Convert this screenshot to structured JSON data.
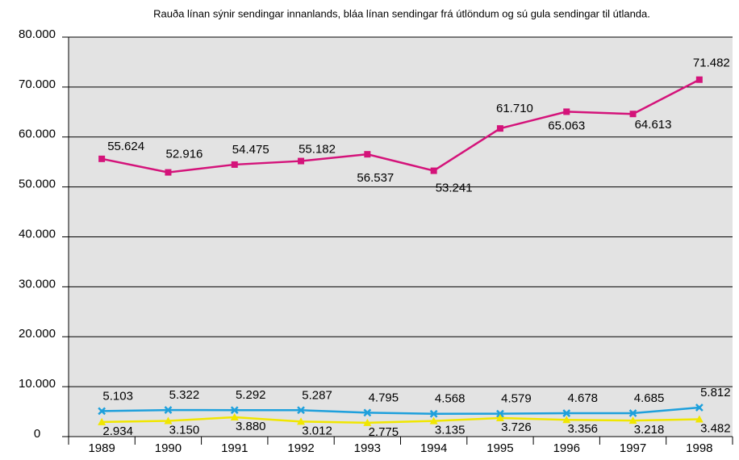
{
  "chart_data": {
    "type": "line",
    "title": "Rauða línan sýnir sendingar innanlands, bláa línan sendingar frá útlöndum og sú gula sendingar til útlanda.",
    "categories": [
      "1989",
      "1990",
      "1991",
      "1992",
      "1993",
      "1994",
      "1995",
      "1996",
      "1997",
      "1998"
    ],
    "series": [
      {
        "color": "#d4137a",
        "marker": "square",
        "values": [
          55624,
          52916,
          54475,
          55182,
          56537,
          53241,
          61710,
          65063,
          64613,
          71482
        ],
        "value_labels": [
          "55.624",
          "52.916",
          "54.475",
          "55.182",
          "56.537",
          "53.241",
          "61.710",
          "65.063",
          "64.613",
          "71.482"
        ]
      },
      {
        "color": "#1ea0dc",
        "marker": "x",
        "values": [
          5103,
          5322,
          5292,
          5287,
          4795,
          4568,
          4579,
          4678,
          4685,
          5812
        ],
        "value_labels": [
          "5.103",
          "5.322",
          "5.292",
          "5.287",
          "4.795",
          "4.568",
          "4.579",
          "4.678",
          "4.685",
          "5.812"
        ]
      },
      {
        "color": "#f0e600",
        "marker": "triangle",
        "values": [
          2934,
          3150,
          3880,
          3012,
          2775,
          3135,
          3726,
          3356,
          3218,
          3482
        ],
        "value_labels": [
          "2.934",
          "3.150",
          "3.880",
          "3.012",
          "2.775",
          "3.135",
          "3.726",
          "3.356",
          "3.218",
          "3.482"
        ]
      }
    ],
    "ylim": [
      0,
      80000
    ],
    "yticks": [
      0,
      {
        "value": 10000,
        "label": "10.000"
      },
      {
        "value": 20000,
        "label": "20.000"
      },
      {
        "value": 30000,
        "label": "30.000"
      },
      {
        "value": 40000,
        "label": "40.000"
      },
      {
        "value": 50000,
        "label": "50.000"
      },
      {
        "value": 60000,
        "label": "60.000"
      },
      {
        "value": 70000,
        "label": "70.000"
      },
      {
        "value": 80000,
        "label": "80.000"
      }
    ],
    "grid": true,
    "plot_background": "#e3e3e3"
  }
}
